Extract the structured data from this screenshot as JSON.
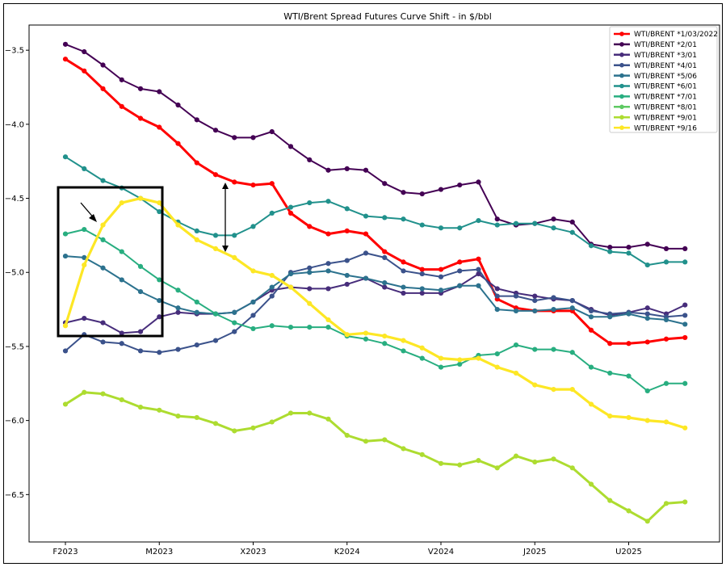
{
  "chart_data": {
    "type": "line",
    "title": "WTI/Brent Spread Futures Curve Shift - in $/bbl",
    "xlabel": "",
    "ylabel": "",
    "ylim": [
      -6.82,
      -3.33
    ],
    "x_tick_labels": [
      "F2023",
      "M2023",
      "X2023",
      "K2024",
      "V2024",
      "J2025",
      "U2025"
    ],
    "x_tick_positions": [
      0,
      5,
      10,
      15,
      20,
      25,
      30
    ],
    "y_ticks": [
      -3.5,
      -4.0,
      -4.5,
      -5.0,
      -5.5,
      -6.0,
      -6.5
    ],
    "y_tick_labels": [
      "−3.5",
      "−4.0",
      "−4.5",
      "−5.0",
      "−5.5",
      "−6.0",
      "−6.5"
    ],
    "grid": false,
    "legend_position": "top-right",
    "annotations": [
      "box around first months",
      "diagonal arrow",
      "double-headed vertical arrow"
    ],
    "series": [
      {
        "name": "WTI/BRENT *1/03/2022",
        "color": "#ff0000",
        "values": [
          -3.56,
          -3.64,
          -3.76,
          -3.88,
          -3.96,
          -4.02,
          -4.13,
          -4.26,
          -4.34,
          -4.39,
          -4.41,
          -4.4,
          -4.6,
          -4.69,
          -4.74,
          -4.72,
          -4.74,
          -4.86,
          -4.93,
          -4.98,
          -4.98,
          -4.93,
          -4.91,
          -5.18,
          -5.24,
          -5.26,
          -5.26,
          -5.26,
          -5.39,
          -5.48,
          -5.48,
          -5.47,
          -5.45,
          -5.44
        ]
      },
      {
        "name": "WTI/BRENT *2/01",
        "color": "#440154",
        "values": [
          -3.46,
          -3.51,
          -3.6,
          -3.7,
          -3.76,
          -3.78,
          -3.87,
          -3.97,
          -4.04,
          -4.09,
          -4.09,
          -4.05,
          -4.15,
          -4.24,
          -4.31,
          -4.3,
          -4.31,
          -4.4,
          -4.46,
          -4.47,
          -4.44,
          -4.41,
          -4.39,
          -4.64,
          -4.68,
          -4.67,
          -4.64,
          -4.66,
          -4.81,
          -4.83,
          -4.83,
          -4.81,
          -4.84,
          -4.84
        ]
      },
      {
        "name": "WTI/BRENT *3/01",
        "color": "#472d7b",
        "values": [
          -5.34,
          -5.31,
          -5.34,
          -5.41,
          -5.4,
          -5.3,
          -5.27,
          -5.28,
          -5.28,
          -5.27,
          -5.2,
          -5.12,
          -5.1,
          -5.11,
          -5.11,
          -5.08,
          -5.04,
          -5.1,
          -5.14,
          -5.14,
          -5.14,
          -5.09,
          -5.01,
          -5.11,
          -5.14,
          -5.16,
          -5.18,
          -5.19,
          -5.25,
          -5.29,
          -5.27,
          -5.24,
          -5.28,
          -5.22
        ]
      },
      {
        "name": "WTI/BRENT *4/01",
        "color": "#3b528b",
        "values": [
          -5.53,
          -5.42,
          -5.47,
          -5.48,
          -5.53,
          -5.54,
          -5.52,
          -5.49,
          -5.46,
          -5.4,
          -5.29,
          -5.16,
          -5.0,
          -4.97,
          -4.94,
          -4.92,
          -4.87,
          -4.9,
          -4.99,
          -5.01,
          -5.03,
          -4.99,
          -4.98,
          -5.16,
          -5.16,
          -5.19,
          -5.17,
          -5.19,
          -5.26,
          -5.28,
          -5.27,
          -5.28,
          -5.3,
          -5.29
        ]
      },
      {
        "name": "WTI/BRENT *5/06",
        "color": "#2c728e",
        "values": [
          -4.89,
          -4.9,
          -4.97,
          -5.05,
          -5.13,
          -5.19,
          -5.24,
          -5.27,
          -5.28,
          -5.27,
          -5.2,
          -5.1,
          -5.01,
          -5.0,
          -4.99,
          -5.02,
          -5.04,
          -5.07,
          -5.1,
          -5.11,
          -5.12,
          -5.09,
          -5.09,
          -5.25,
          -5.26,
          -5.26,
          -5.25,
          -5.24,
          -5.3,
          -5.3,
          -5.28,
          -5.31,
          -5.32,
          -5.35
        ]
      },
      {
        "name": "WTI/BRENT *6/01",
        "color": "#21918c",
        "values": [
          -4.22,
          -4.3,
          -4.38,
          -4.43,
          -4.5,
          -4.59,
          -4.66,
          -4.72,
          -4.75,
          -4.75,
          -4.69,
          -4.6,
          -4.56,
          -4.53,
          -4.52,
          -4.57,
          -4.62,
          -4.63,
          -4.64,
          -4.68,
          -4.7,
          -4.7,
          -4.65,
          -4.68,
          -4.67,
          -4.67,
          -4.7,
          -4.73,
          -4.82,
          -4.86,
          -4.87,
          -4.95,
          -4.93,
          -4.93
        ]
      },
      {
        "name": "WTI/BRENT *7/01",
        "color": "#28ae80",
        "values": [
          -4.74,
          -4.71,
          -4.78,
          -4.86,
          -4.96,
          -5.05,
          -5.12,
          -5.2,
          -5.28,
          -5.34,
          -5.38,
          -5.36,
          -5.37,
          -5.37,
          -5.37,
          -5.43,
          -5.45,
          -5.48,
          -5.53,
          -5.58,
          -5.64,
          -5.62,
          -5.56,
          -5.55,
          -5.49,
          -5.52,
          -5.52,
          -5.54,
          -5.64,
          -5.68,
          -5.7,
          -5.8,
          -5.75,
          -5.75
        ]
      },
      {
        "name": "WTI/BRENT *8/01",
        "color": "#5ec962",
        "values": []
      },
      {
        "name": "WTI/BRENT *9/01",
        "color": "#addc30",
        "values": [
          -5.89,
          -5.81,
          -5.82,
          -5.86,
          -5.91,
          -5.93,
          -5.97,
          -5.98,
          -6.02,
          -6.07,
          -6.05,
          -6.01,
          -5.95,
          -5.95,
          -5.99,
          -6.1,
          -6.14,
          -6.13,
          -6.19,
          -6.23,
          -6.29,
          -6.3,
          -6.27,
          -6.32,
          -6.24,
          -6.28,
          -6.26,
          -6.32,
          -6.43,
          -6.54,
          -6.61,
          -6.68,
          -6.56,
          -6.55
        ]
      },
      {
        "name": "WTI/BRENT *9/16",
        "color": "#fde725",
        "values": [
          -5.36,
          -4.95,
          -4.68,
          -4.53,
          -4.5,
          -4.53,
          -4.68,
          -4.78,
          -4.84,
          -4.9,
          -4.99,
          -5.02,
          -5.1,
          -5.21,
          -5.32,
          -5.42,
          -5.41,
          -5.43,
          -5.46,
          -5.51,
          -5.58,
          -5.59,
          -5.58,
          -5.64,
          -5.68,
          -5.76,
          -5.79,
          -5.79,
          -5.89,
          -5.97,
          -5.98,
          -6.0,
          -6.01,
          -6.05
        ]
      }
    ]
  }
}
